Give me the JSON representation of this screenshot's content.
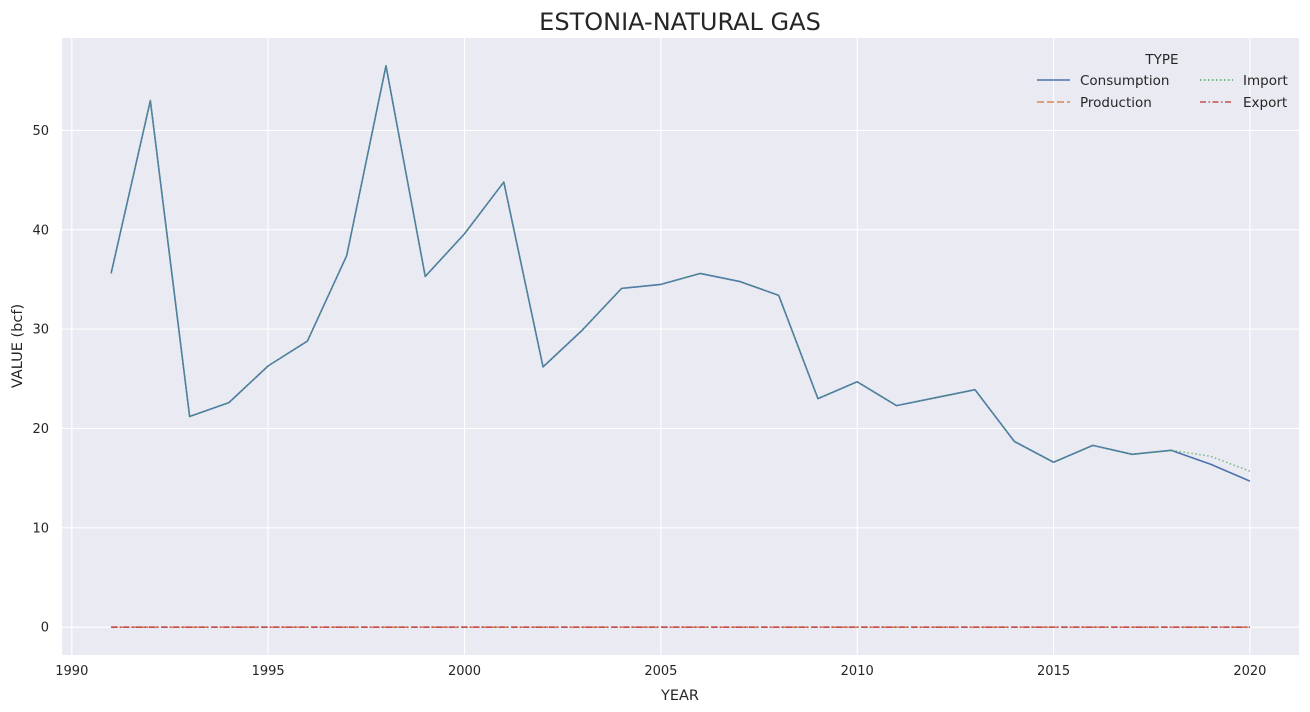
{
  "chart_data": {
    "type": "line",
    "title": "ESTONIA-NATURAL GAS",
    "xlabel": "YEAR",
    "ylabel": "VALUE (bcf)",
    "xlim": [
      1989.75,
      2021.25
    ],
    "ylim": [
      -2.8,
      59.3
    ],
    "xticks": [
      1990,
      1995,
      2000,
      2005,
      2010,
      2015,
      2020
    ],
    "yticks": [
      0,
      10,
      20,
      30,
      40,
      50
    ],
    "grid": true,
    "background": "#eaeaf2",
    "legend": {
      "title": "TYPE",
      "position": "top-right",
      "columns": 2
    },
    "x": [
      1991,
      1992,
      1993,
      1994,
      1995,
      1996,
      1997,
      1998,
      1999,
      2000,
      2001,
      2002,
      2003,
      2004,
      2005,
      2006,
      2007,
      2008,
      2009,
      2010,
      2011,
      2012,
      2013,
      2014,
      2015,
      2016,
      2017,
      2018,
      2019,
      2020
    ],
    "series": [
      {
        "name": "Consumption",
        "color": "#4c72b0",
        "dash": "solid",
        "values": [
          35.6,
          53.0,
          21.2,
          22.6,
          26.3,
          28.8,
          37.4,
          56.5,
          35.3,
          39.6,
          44.8,
          26.2,
          29.9,
          34.1,
          34.5,
          35.6,
          34.8,
          33.4,
          23.0,
          24.7,
          22.3,
          23.1,
          23.9,
          18.7,
          16.6,
          18.3,
          17.4,
          17.8,
          16.4,
          14.7
        ]
      },
      {
        "name": "Production",
        "color": "#dd8452",
        "dash": "dashed",
        "values": [
          0,
          0,
          0,
          0,
          0,
          0,
          0,
          0,
          0,
          0,
          0,
          0,
          0,
          0,
          0,
          0,
          0,
          0,
          0,
          0,
          0,
          0,
          0,
          0,
          0,
          0,
          0,
          0,
          0,
          0
        ]
      },
      {
        "name": "Import",
        "color": "#55a868",
        "dash": "dotted",
        "values": [
          35.6,
          53.0,
          21.2,
          22.6,
          26.3,
          28.8,
          37.4,
          56.5,
          35.3,
          39.6,
          44.8,
          26.2,
          29.9,
          34.1,
          34.5,
          35.6,
          34.8,
          33.4,
          23.0,
          24.7,
          22.3,
          23.1,
          23.9,
          18.7,
          16.6,
          18.3,
          17.4,
          17.8,
          17.2,
          15.7
        ]
      },
      {
        "name": "Export",
        "color": "#c44e52",
        "dash": "dashdot",
        "values": [
          0,
          0,
          0,
          0,
          0,
          0,
          0,
          0,
          0,
          0,
          0,
          0,
          0,
          0,
          0,
          0,
          0,
          0,
          0,
          0,
          0,
          0,
          0,
          0,
          0,
          0,
          0,
          0,
          0,
          0
        ]
      }
    ]
  }
}
